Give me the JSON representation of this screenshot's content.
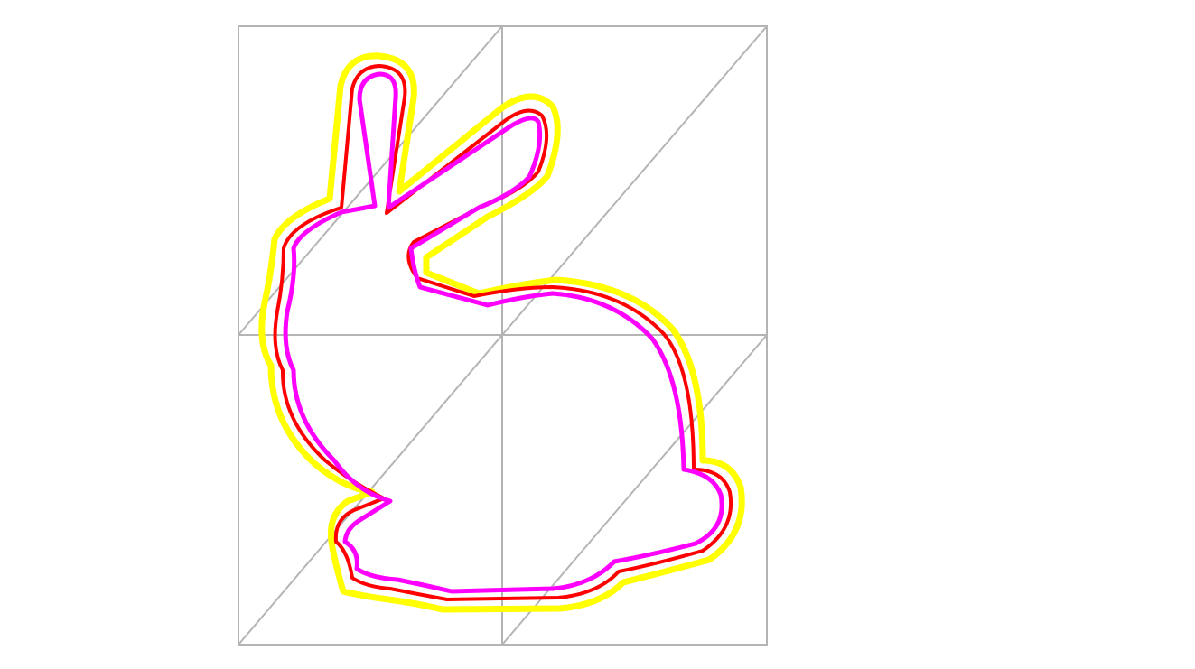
{
  "figure": {
    "grid": {
      "columns": 2,
      "rows": 2,
      "diagonals": true,
      "color": "#b4b4b4"
    },
    "outlines": [
      {
        "name": "outer",
        "color": "#ffff00"
      },
      {
        "name": "middle",
        "color": "#ff0000"
      },
      {
        "name": "inner",
        "color": "#ff00ff"
      }
    ]
  }
}
